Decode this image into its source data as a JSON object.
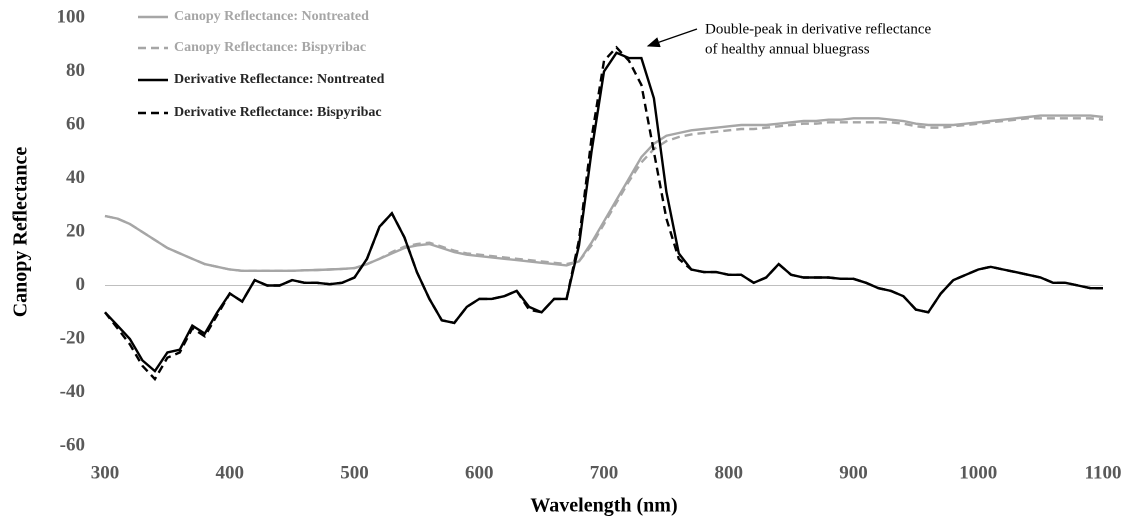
{
  "chart_data": {
    "type": "line",
    "x_label": "Wavelength (nm)",
    "y_label": "Canopy Reflectance",
    "annotation": [
      "Double-peak in derivative reflectance",
      "of healthy annual bluegrass"
    ],
    "xlim": [
      300,
      1100
    ],
    "ylim": [
      -60,
      100
    ],
    "xticks": [
      300,
      400,
      500,
      600,
      700,
      800,
      900,
      1000,
      1100
    ],
    "yticks": [
      -60,
      -40,
      -20,
      0,
      20,
      40,
      60,
      80,
      100
    ],
    "legend": "top-left",
    "x": [
      300,
      310,
      320,
      330,
      340,
      350,
      360,
      370,
      380,
      390,
      400,
      410,
      420,
      430,
      440,
      450,
      460,
      470,
      480,
      490,
      500,
      510,
      520,
      530,
      540,
      550,
      560,
      570,
      580,
      590,
      600,
      610,
      620,
      630,
      640,
      650,
      660,
      670,
      680,
      690,
      700,
      710,
      720,
      730,
      740,
      750,
      760,
      770,
      780,
      790,
      800,
      810,
      820,
      830,
      840,
      850,
      860,
      870,
      880,
      890,
      900,
      910,
      920,
      930,
      940,
      950,
      960,
      970,
      980,
      990,
      1000,
      1010,
      1020,
      1030,
      1040,
      1050,
      1060,
      1070,
      1080,
      1090,
      1100
    ],
    "series": [
      {
        "name": "Canopy Reflectance: Nontreated",
        "color": "#a6a6a6",
        "dash": "solid",
        "values": [
          26,
          25,
          23,
          20,
          17,
          14,
          12,
          10,
          8,
          7,
          6,
          5.5,
          5.5,
          5.5,
          5.5,
          5.5,
          5.7,
          5.8,
          6,
          6.2,
          6.5,
          8,
          10,
          12,
          14,
          15,
          15.5,
          14,
          12.5,
          11.5,
          11,
          10.5,
          10,
          9.5,
          9,
          8.5,
          8,
          7.5,
          9,
          16,
          24,
          32,
          40,
          48,
          53,
          56,
          57,
          58,
          58.5,
          59,
          59.5,
          60,
          60,
          60,
          60.5,
          61,
          61.5,
          61.5,
          62,
          62,
          62.5,
          62.5,
          62.5,
          62,
          61.5,
          60.5,
          60,
          60,
          60,
          60.5,
          61,
          61.5,
          62,
          62.5,
          63,
          63.5,
          63.5,
          63.5,
          63.5,
          63.5,
          63
        ]
      },
      {
        "name": "Canopy Reflectance: Bispyribac",
        "color": "#a6a6a6",
        "dash": "dashed",
        "values": [
          26,
          25,
          23,
          20,
          17,
          14,
          12,
          10,
          8,
          7,
          6,
          5.5,
          5.5,
          5.5,
          5.5,
          5.5,
          5.7,
          5.8,
          6,
          6.2,
          6.5,
          8,
          10,
          12.5,
          14.5,
          15.5,
          16,
          14.5,
          13,
          12,
          11.5,
          11,
          10.5,
          10,
          9.5,
          9,
          8.5,
          8,
          9,
          15,
          23,
          31,
          39,
          46,
          51,
          54,
          55.5,
          56.5,
          57,
          57.5,
          58,
          58.5,
          58.5,
          59,
          59.5,
          60,
          60.5,
          60.5,
          61,
          61,
          61,
          61,
          61,
          61,
          60.5,
          59.5,
          59,
          59,
          59.5,
          60,
          60.5,
          61,
          61.5,
          62,
          62.5,
          62.5,
          62.5,
          62.5,
          62.5,
          62.5,
          62
        ]
      },
      {
        "name": "Derivative Reflectance: Nontreated",
        "color": "#000000",
        "dash": "solid",
        "values": [
          -10,
          -15,
          -20,
          -28,
          -32,
          -25,
          -24,
          -15,
          -18,
          -10,
          -3,
          -6,
          2,
          0,
          0,
          2,
          1,
          1,
          0.5,
          1,
          3,
          10,
          22,
          27,
          18,
          5,
          -5,
          -13,
          -14,
          -8,
          -5,
          -5,
          -4,
          -2,
          -8,
          -10,
          -5,
          -5,
          15,
          50,
          80,
          87,
          85,
          85,
          70,
          35,
          12,
          6,
          5,
          5,
          4,
          4,
          1,
          3,
          8,
          4,
          3,
          3,
          3,
          2.5,
          2.5,
          1,
          -1,
          -2,
          -4,
          -9,
          -10,
          -3,
          2,
          4,
          6,
          7,
          6,
          5,
          4,
          3,
          1,
          1,
          0,
          -1,
          -1
        ]
      },
      {
        "name": "Derivative Reflectance: Bispyribac",
        "color": "#000000",
        "dash": "dashed",
        "values": [
          -10,
          -16,
          -22,
          -30,
          -35,
          -27,
          -25,
          -16,
          -19,
          -11,
          -3,
          -6,
          2,
          0,
          0,
          2,
          1,
          1,
          0.5,
          1,
          3,
          10,
          22,
          27,
          18,
          5,
          -5,
          -13,
          -14,
          -8,
          -5,
          -5,
          -4,
          -2,
          -9,
          -10,
          -5,
          -5,
          17,
          55,
          84,
          89,
          84,
          75,
          50,
          25,
          10,
          6,
          5,
          5,
          4,
          4,
          1,
          3,
          8,
          4,
          3,
          3,
          3,
          2.5,
          2.5,
          1,
          -1,
          -2,
          -4,
          -9,
          -10,
          -3,
          2,
          4,
          6,
          7,
          6,
          5,
          4,
          3,
          1,
          1,
          0,
          -1,
          -1
        ]
      }
    ]
  }
}
